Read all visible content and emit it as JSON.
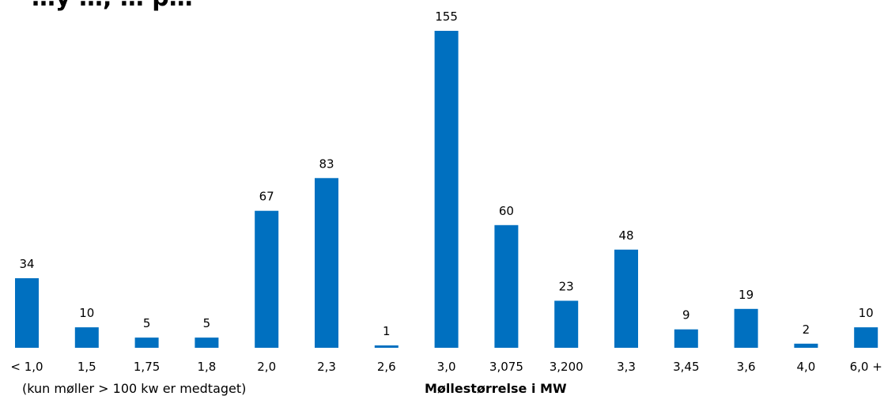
{
  "colors": {
    "bar": "#0070C0",
    "text": "#000000",
    "background": "#ffffff"
  },
  "chart_data": {
    "type": "bar",
    "title": "…y …, … p…",
    "categories": [
      "< 1,0",
      "1,5",
      "1,75",
      "1,8",
      "2,0",
      "2,3",
      "2,6",
      "3,0",
      "3,075",
      "3,200",
      "3,3",
      "3,45",
      "3,6",
      "4,0",
      "6,0 +"
    ],
    "values": [
      34,
      10,
      5,
      5,
      67,
      83,
      1,
      155,
      60,
      23,
      48,
      9,
      19,
      2,
      10
    ],
    "data_labels": [
      "34",
      "10",
      "5",
      "5",
      "67",
      "83",
      "1",
      "155",
      "60",
      "23",
      "48",
      "9",
      "19",
      "2",
      "10"
    ],
    "xlabel": "Møllestørrelse i MW",
    "ylabel": "",
    "ylim": [
      0,
      155
    ],
    "grid": false,
    "legend": "none",
    "note": "(kun møller > 100 kw er medtaget)"
  }
}
